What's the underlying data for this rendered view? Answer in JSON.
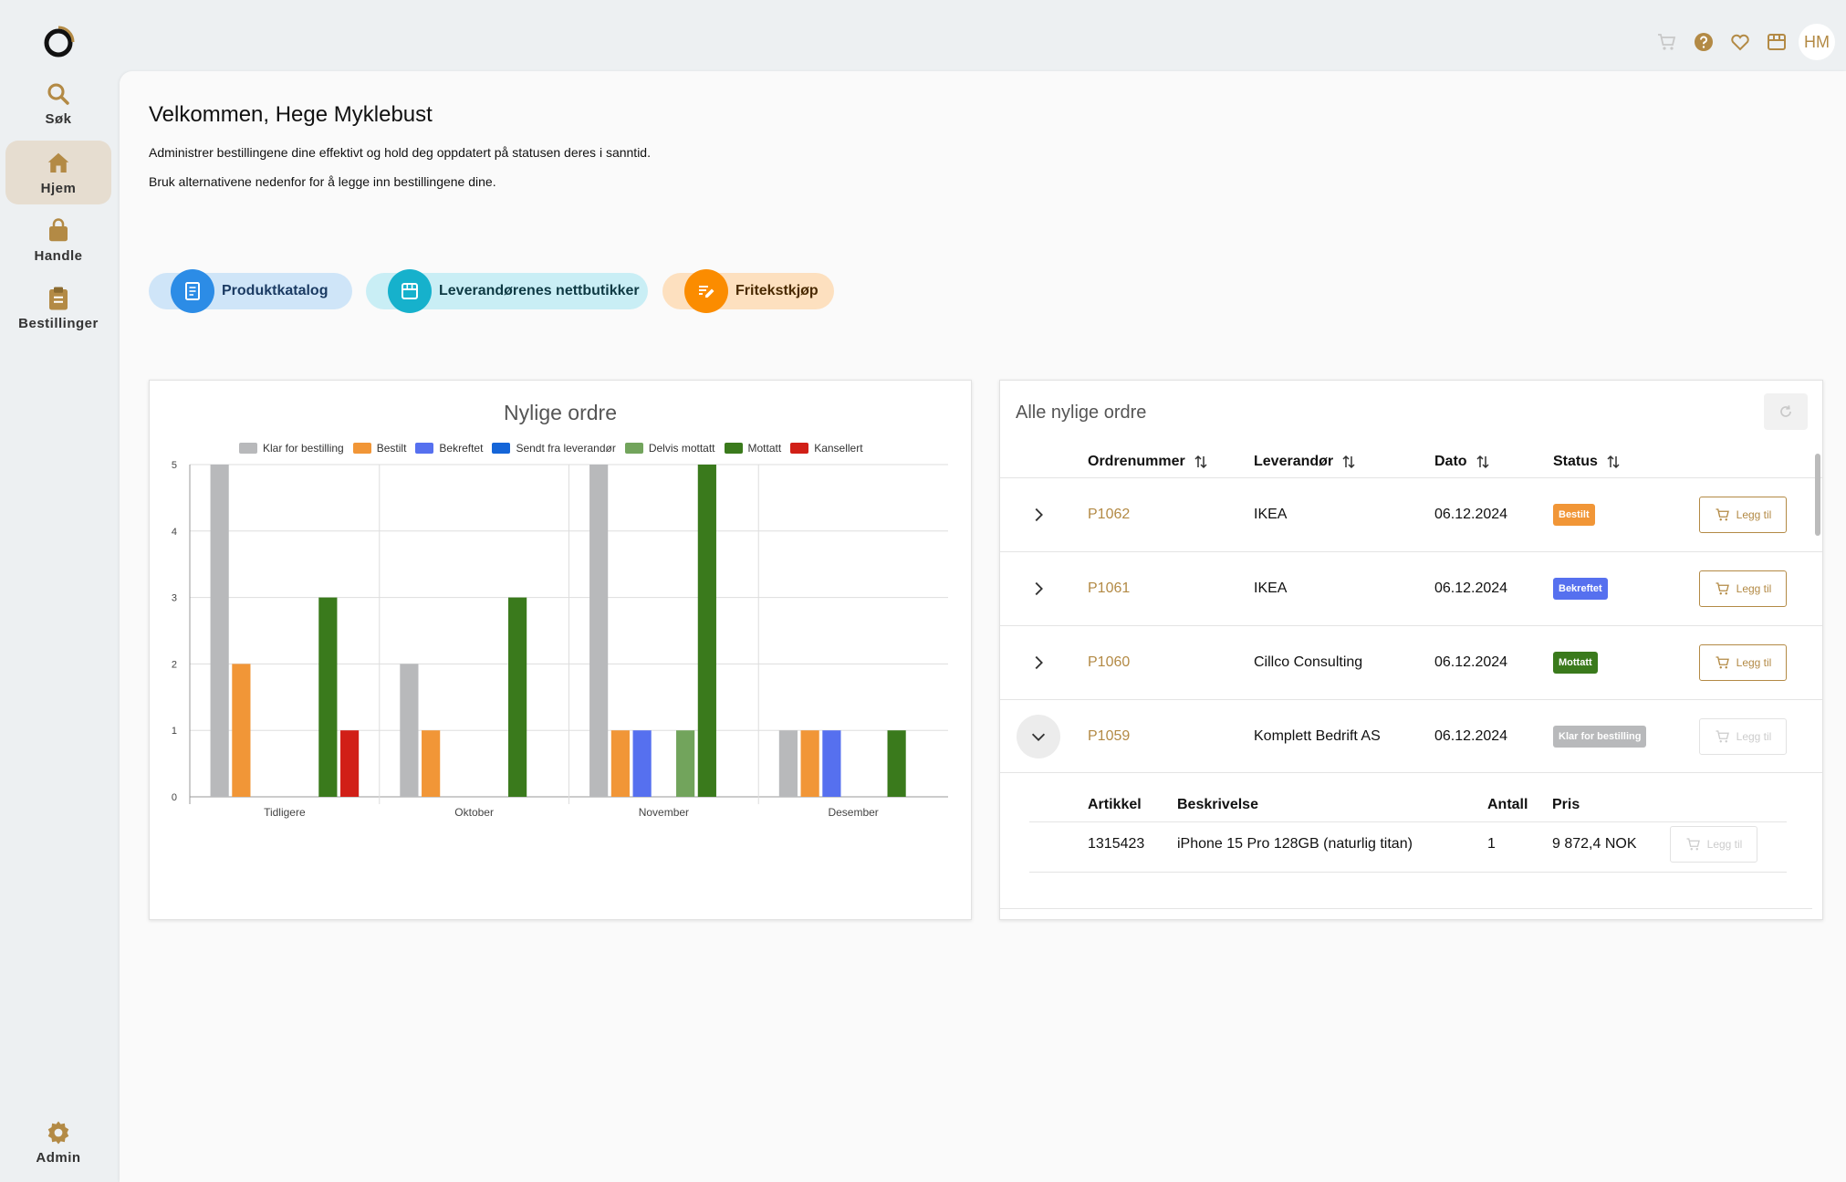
{
  "nav": {
    "items": [
      {
        "label": "Søk",
        "icon": "search-icon"
      },
      {
        "label": "Hjem",
        "icon": "home-icon"
      },
      {
        "label": "Handle",
        "icon": "shopping-bag-icon"
      },
      {
        "label": "Bestillinger",
        "icon": "clipboard-icon"
      }
    ],
    "admin": {
      "label": "Admin",
      "icon": "gear-icon"
    }
  },
  "topbar": {
    "icons": [
      "cart-icon",
      "help-icon",
      "heart-icon",
      "store-icon"
    ],
    "avatar": "HM"
  },
  "welcome": {
    "title": "Velkommen, Hege Myklebust",
    "line1": "Administrer bestillingene dine effektivt og hold deg oppdatert på statusen deres i sanntid.",
    "line2": "Bruk alternativene nedenfor for å legge inn bestillingene dine."
  },
  "actions": [
    {
      "label": "Produktkatalog",
      "icon": "catalog-icon"
    },
    {
      "label": "Leverandørenes nettbutikker",
      "icon": "storefront-icon"
    },
    {
      "label": "Fritekstkjøp",
      "icon": "edit-note-icon"
    }
  ],
  "colors": {
    "accent": "#b38a45",
    "klar": "#b8b9bb",
    "bestilt": "#f19637",
    "bekreftet": "#5670ef",
    "sendt": "#1565d8",
    "delvis": "#72a45c",
    "mottatt": "#3a7a1c",
    "kansellert": "#d11f17"
  },
  "chart_data": {
    "type": "bar",
    "title": "Nylige ordre",
    "categories": [
      "Tidligere",
      "Oktober",
      "November",
      "Desember"
    ],
    "ylim": [
      0,
      5
    ],
    "yticks": [
      "0",
      "1",
      "2",
      "3",
      "4",
      "5"
    ],
    "grid": true,
    "legend_position": "top",
    "series": [
      {
        "name": "Klar for bestilling",
        "color": "#b8b9bb",
        "values": [
          5,
          2,
          5,
          1
        ]
      },
      {
        "name": "Bestilt",
        "color": "#f19637",
        "values": [
          2,
          1,
          1,
          1
        ]
      },
      {
        "name": "Bekreftet",
        "color": "#5670ef",
        "values": [
          0,
          0,
          1,
          1
        ]
      },
      {
        "name": "Sendt fra leverandør",
        "color": "#1565d8",
        "values": [
          0,
          0,
          0,
          0
        ]
      },
      {
        "name": "Delvis mottatt",
        "color": "#72a45c",
        "values": [
          0,
          0,
          1,
          0
        ]
      },
      {
        "name": "Mottatt",
        "color": "#3a7a1c",
        "values": [
          3,
          3,
          5,
          1
        ]
      },
      {
        "name": "Kansellert",
        "color": "#d11f17",
        "values": [
          1,
          0,
          0,
          0
        ]
      }
    ]
  },
  "orders": {
    "title": "Alle nylige ordre",
    "columns": [
      "Ordrenummer",
      "Leverandør",
      "Dato",
      "Status"
    ],
    "add_label": "Legg til",
    "rows": [
      {
        "nr": "P1062",
        "lev": "IKEA",
        "dato": "06.12.2024",
        "status": "Bestilt",
        "status_color": "#f19637",
        "expanded": false,
        "enabled": true
      },
      {
        "nr": "P1061",
        "lev": "IKEA",
        "dato": "06.12.2024",
        "status": "Bekreftet",
        "status_color": "#5670ef",
        "expanded": false,
        "enabled": true
      },
      {
        "nr": "P1060",
        "lev": "Cillco Consulting",
        "dato": "06.12.2024",
        "status": "Mottatt",
        "status_color": "#3a7a1c",
        "expanded": false,
        "enabled": true
      },
      {
        "nr": "P1059",
        "lev": "Komplett Bedrift AS",
        "dato": "06.12.2024",
        "status": "Klar for bestilling",
        "status_color": "#b8b9bb",
        "expanded": true,
        "enabled": false
      }
    ],
    "detail": {
      "columns": [
        "Artikkel",
        "Beskrivelse",
        "Antall",
        "Pris"
      ],
      "items": [
        {
          "artikkel": "1315423",
          "beskrivelse": "iPhone 15 Pro 128GB (naturlig titan)",
          "antall": "1",
          "pris": "9 872,4 NOK"
        }
      ]
    }
  }
}
